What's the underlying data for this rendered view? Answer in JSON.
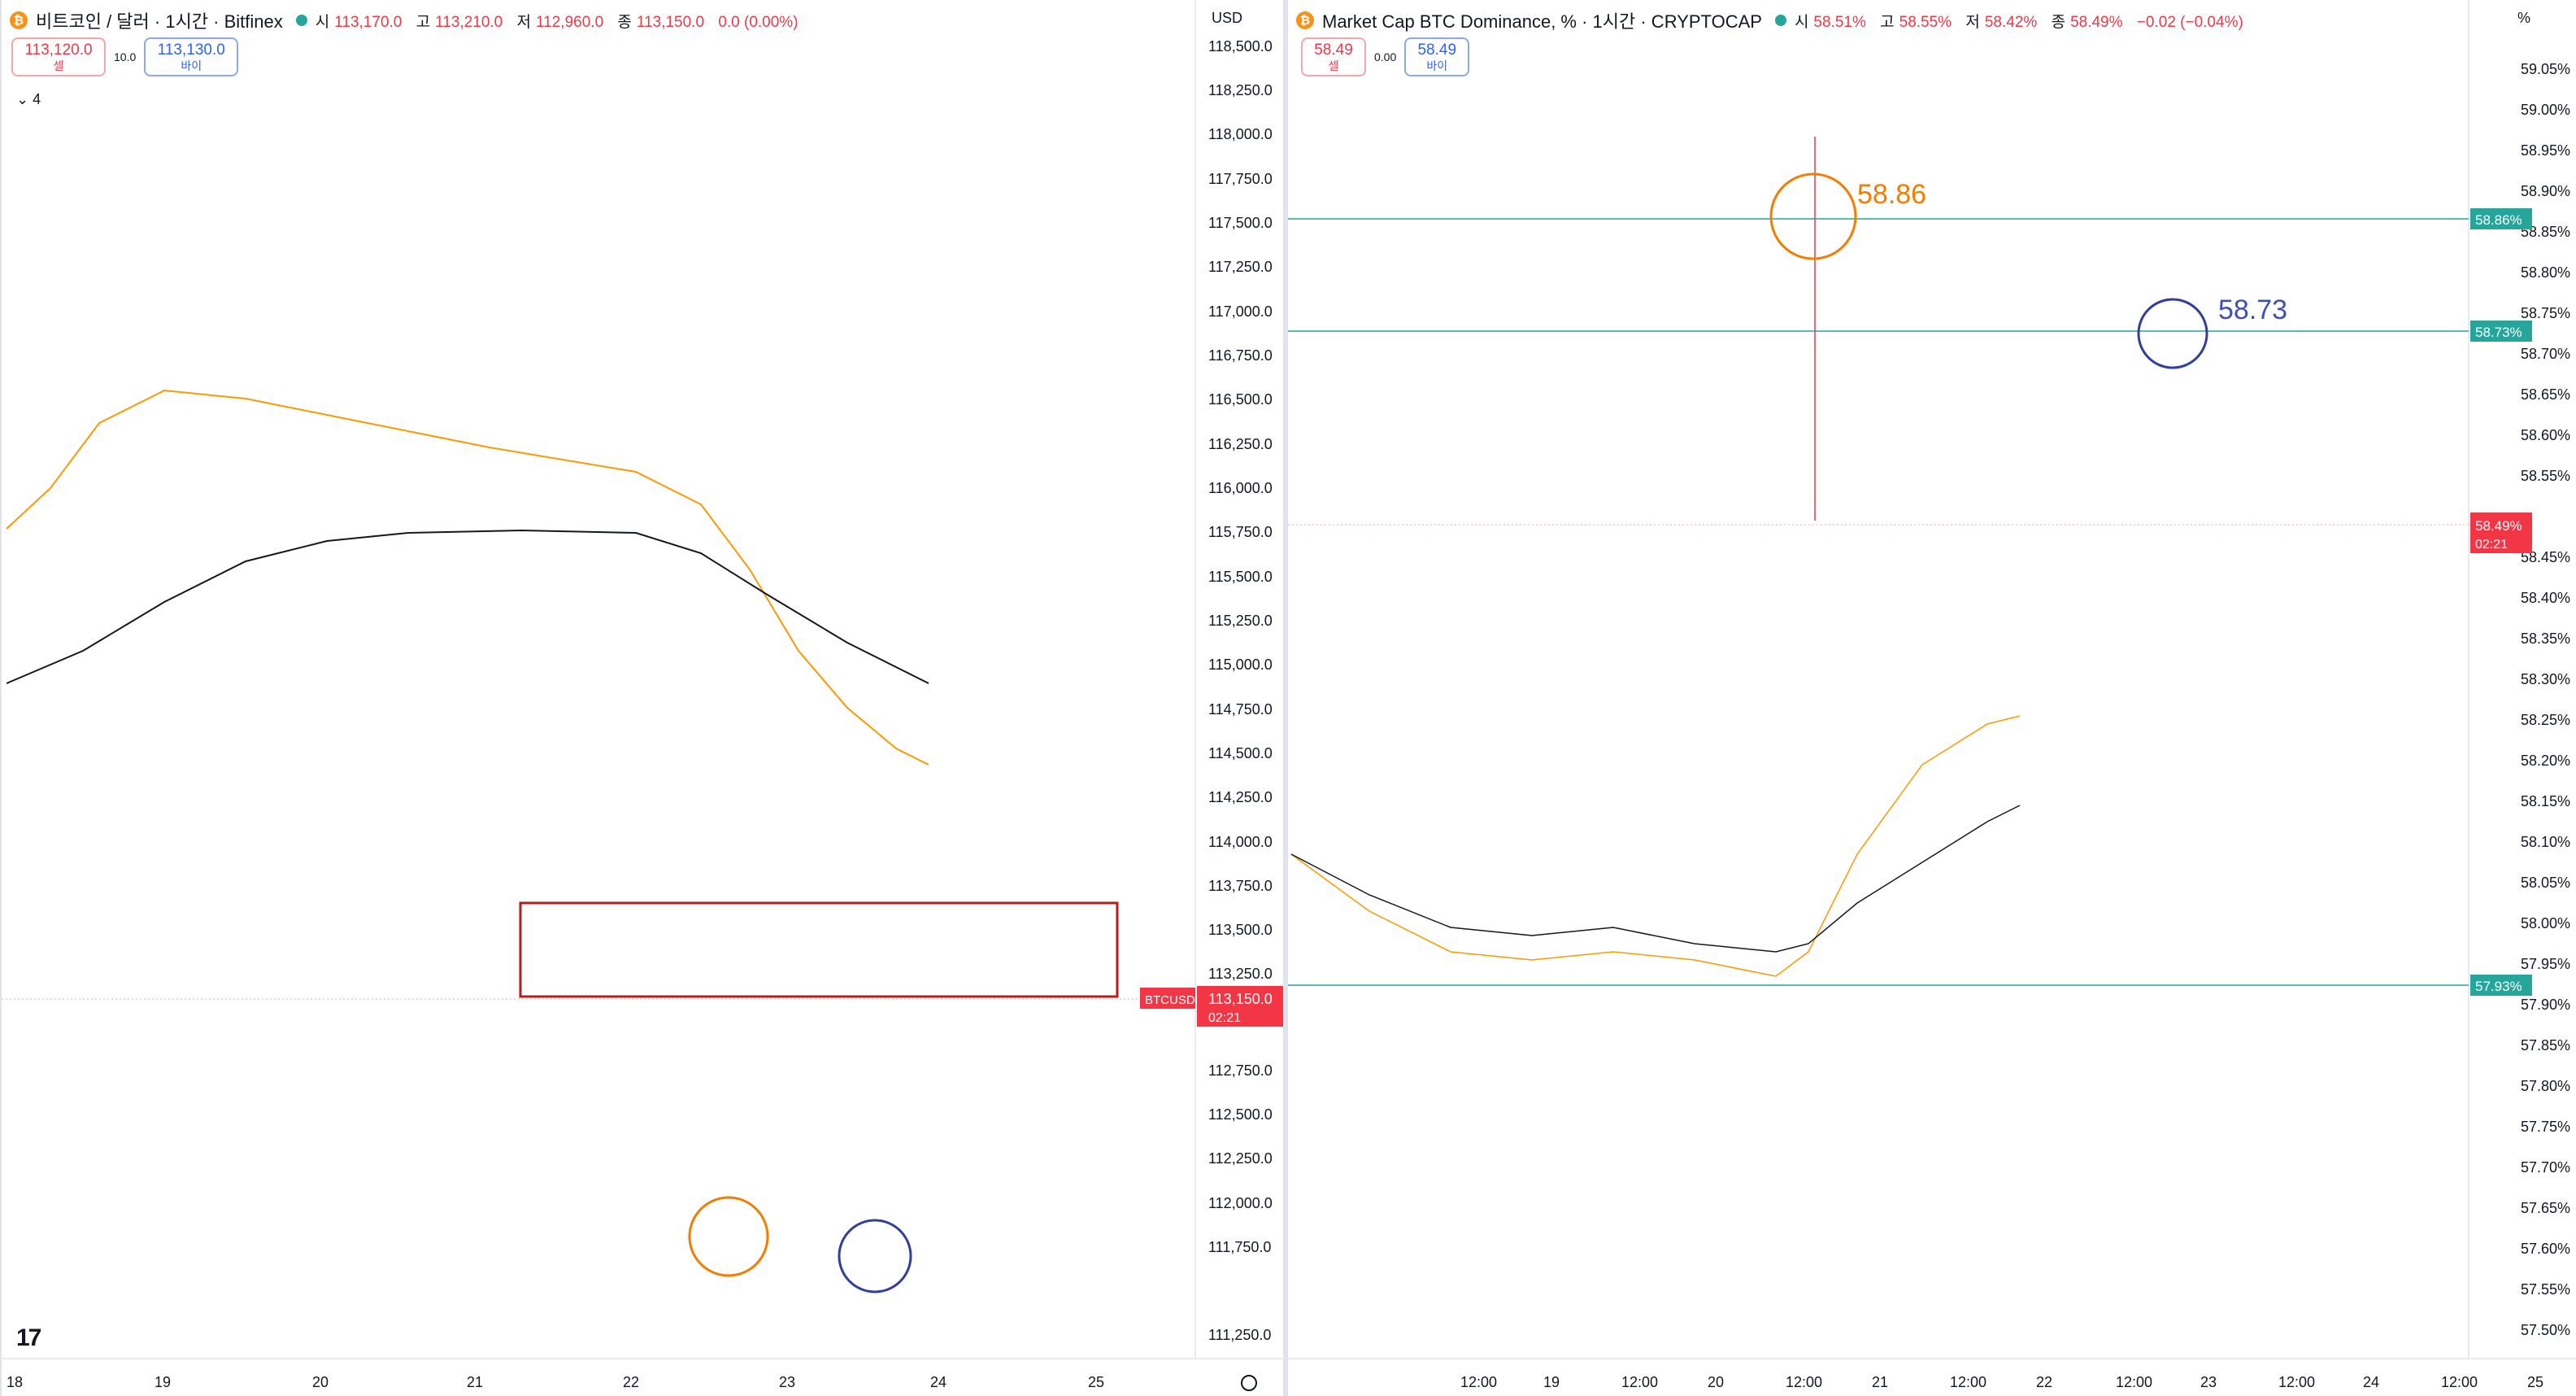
{
  "left": {
    "title": "비트코인 / 달러 · 1시간 · Bitfinex",
    "ohlc": [
      {
        "label": "시",
        "value": "113,170.0"
      },
      {
        "label": "고",
        "value": "113,210.0"
      },
      {
        "label": "저",
        "value": "112,960.0"
      },
      {
        "label": "종",
        "value": "113,150.0"
      },
      {
        "label": "",
        "value": "0.0 (0.00%)"
      }
    ],
    "sell_price": "113,120.0",
    "sell_label": "셀",
    "spread": "10.0",
    "buy_price": "113,130.0",
    "buy_label": "바이",
    "indicators_count": "4",
    "currency": "USD",
    "y_ticks": [
      "118,500.0",
      "118,250.0",
      "118,000.0",
      "117,750.0",
      "117,500.0",
      "117,250.0",
      "117,000.0",
      "116,750.0",
      "116,500.0",
      "116,250.0",
      "116,000.0",
      "115,750.0",
      "115,500.0",
      "115,250.0",
      "115,000.0",
      "114,750.0",
      "114,500.0",
      "114,250.0",
      "114,000.0",
      "113,750.0",
      "113,500.0",
      "113,250.0",
      "112,750.0",
      "112,500.0",
      "112,250.0",
      "112,000.0",
      "111,750.0",
      "111,250.0"
    ],
    "x_ticks": [
      "18",
      "19",
      "20",
      "21",
      "22",
      "23",
      "24",
      "25"
    ],
    "symbol_tag": "BTCUSD",
    "price_tag": "113,150.0",
    "countdown": "02:21",
    "logo": "17"
  },
  "right": {
    "title": "Market Cap BTC Dominance, % · 1시간 · CRYPTOCAP",
    "ohlc": [
      {
        "label": "시",
        "value": "58.51%"
      },
      {
        "label": "고",
        "value": "58.55%"
      },
      {
        "label": "저",
        "value": "58.42%"
      },
      {
        "label": "종",
        "value": "58.49%"
      },
      {
        "label": "",
        "value": "−0.02 (−0.04%)"
      }
    ],
    "sell_price": "58.49",
    "sell_label": "셀",
    "spread": "0.00",
    "buy_price": "58.49",
    "buy_label": "바이",
    "unit": "%",
    "y_ticks": [
      "59.05%",
      "59.00%",
      "58.95%",
      "58.90%",
      "58.85%",
      "58.80%",
      "58.75%",
      "58.70%",
      "58.65%",
      "58.60%",
      "58.55%",
      "58.45%",
      "58.40%",
      "58.35%",
      "58.30%",
      "58.25%",
      "58.20%",
      "58.15%",
      "58.10%",
      "58.05%",
      "58.00%",
      "57.95%",
      "57.90%",
      "57.85%",
      "57.80%",
      "57.75%",
      "57.70%",
      "57.65%",
      "57.60%",
      "57.55%",
      "57.50%"
    ],
    "x_ticks": [
      "12:00",
      "19",
      "12:00",
      "20",
      "12:00",
      "21",
      "12:00",
      "22",
      "12:00",
      "23",
      "12:00",
      "24",
      "12:00",
      "25",
      "12:0"
    ],
    "tag_high": "58.86%",
    "tag_mid": "58.73%",
    "tag_low": "57.93%",
    "price_tag": "58.49%",
    "countdown": "02:21",
    "annot_orange": "58.86",
    "annot_blue": "58.73"
  },
  "colors": {
    "up": "#26a69a",
    "down": "#f23645",
    "ma_red": "#f23645",
    "ma_blue": "#2962ff",
    "ma_orange": "#ff9800",
    "ma_black": "#131722",
    "box": "#b71c1c",
    "circle_orange": "#f57c00",
    "circle_blue": "#303f9f",
    "hline": "#26a69a"
  }
}
